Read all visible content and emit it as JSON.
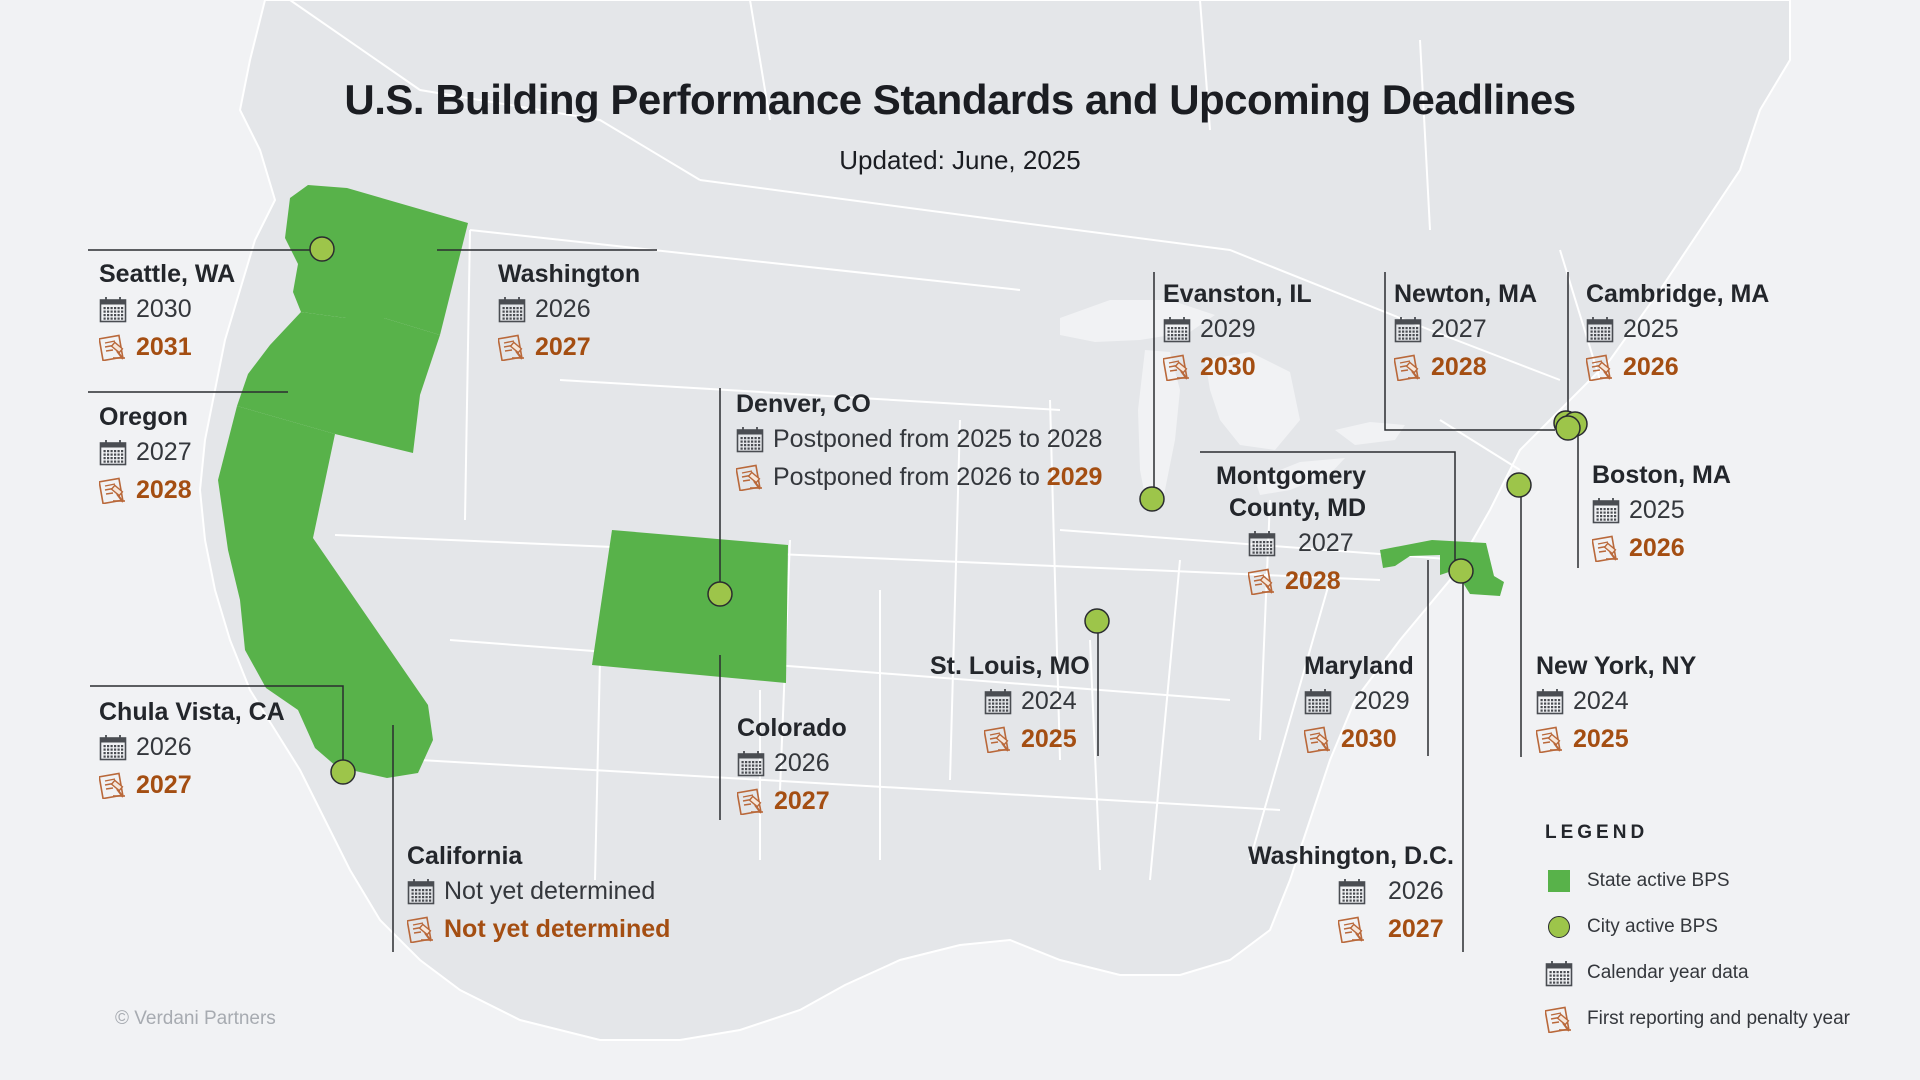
{
  "title": "U.S. Building Performance Standards and Upcoming Deadlines",
  "subtitle": "Updated: June, 2025",
  "copyright": "© Verdani Partners",
  "colors": {
    "state_fill": "#58b24a",
    "city_fill": "#9dc54a",
    "penalty_text": "#a44e12",
    "land": "#e4e6e9",
    "water": "#f1f2f4"
  },
  "icons": {
    "calendar": "calendar-icon",
    "reporting": "report-penalty-icon"
  },
  "locations": [
    {
      "id": "seattle",
      "name": "Seattle, WA",
      "type": "city",
      "calendar_year": "2030",
      "penalty_year": "2031"
    },
    {
      "id": "washington",
      "name": "Washington",
      "type": "state",
      "calendar_year": "2026",
      "penalty_year": "2027"
    },
    {
      "id": "oregon",
      "name": "Oregon",
      "type": "state",
      "calendar_year": "2027",
      "penalty_year": "2028"
    },
    {
      "id": "denver",
      "name": "Denver, CO",
      "type": "city",
      "calendar_year": "Postponed from 2025 to 2028",
      "penalty_prefix": "Postponed from 2026 to ",
      "penalty_year": "2029"
    },
    {
      "id": "evanston",
      "name": "Evanston, IL",
      "type": "city",
      "calendar_year": "2029",
      "penalty_year": "2030"
    },
    {
      "id": "newton",
      "name": "Newton, MA",
      "type": "city",
      "calendar_year": "2027",
      "penalty_year": "2028"
    },
    {
      "id": "cambridge",
      "name": "Cambridge, MA",
      "type": "city",
      "calendar_year": "2025",
      "penalty_year": "2026"
    },
    {
      "id": "boston",
      "name": "Boston, MA",
      "type": "city",
      "calendar_year": "2025",
      "penalty_year": "2026"
    },
    {
      "id": "montgomery",
      "name": "Montgomery County, MD",
      "name_line1": "Montgomery",
      "name_line2": "County, MD",
      "type": "city",
      "calendar_year": "2027",
      "penalty_year": "2028"
    },
    {
      "id": "stlouis",
      "name": "St. Louis, MO",
      "type": "city",
      "calendar_year": "2024",
      "penalty_year": "2025"
    },
    {
      "id": "maryland",
      "name": "Maryland",
      "type": "state",
      "calendar_year": "2029",
      "penalty_year": "2030"
    },
    {
      "id": "newyork",
      "name": "New York, NY",
      "type": "city",
      "calendar_year": "2024",
      "penalty_year": "2025"
    },
    {
      "id": "chulavista",
      "name": "Chula Vista, CA",
      "type": "city",
      "calendar_year": "2026",
      "penalty_year": "2027"
    },
    {
      "id": "colorado",
      "name": "Colorado",
      "type": "state",
      "calendar_year": "2026",
      "penalty_year": "2027"
    },
    {
      "id": "california",
      "name": "California",
      "type": "state",
      "calendar_year": "Not yet determined",
      "penalty_year": "Not yet determined"
    },
    {
      "id": "dc",
      "name": "Washington, D.C.",
      "type": "city",
      "calendar_year": "2026",
      "penalty_year": "2027"
    }
  ],
  "legend": {
    "title": "LEGEND",
    "items": [
      {
        "label": "State active BPS",
        "icon": "green-square-icon"
      },
      {
        "label": "City active BPS",
        "icon": "green-circle-icon"
      },
      {
        "label": "Calendar year data",
        "icon": "calendar-icon"
      },
      {
        "label": "First reporting and penalty year",
        "icon": "report-penalty-icon"
      }
    ]
  }
}
